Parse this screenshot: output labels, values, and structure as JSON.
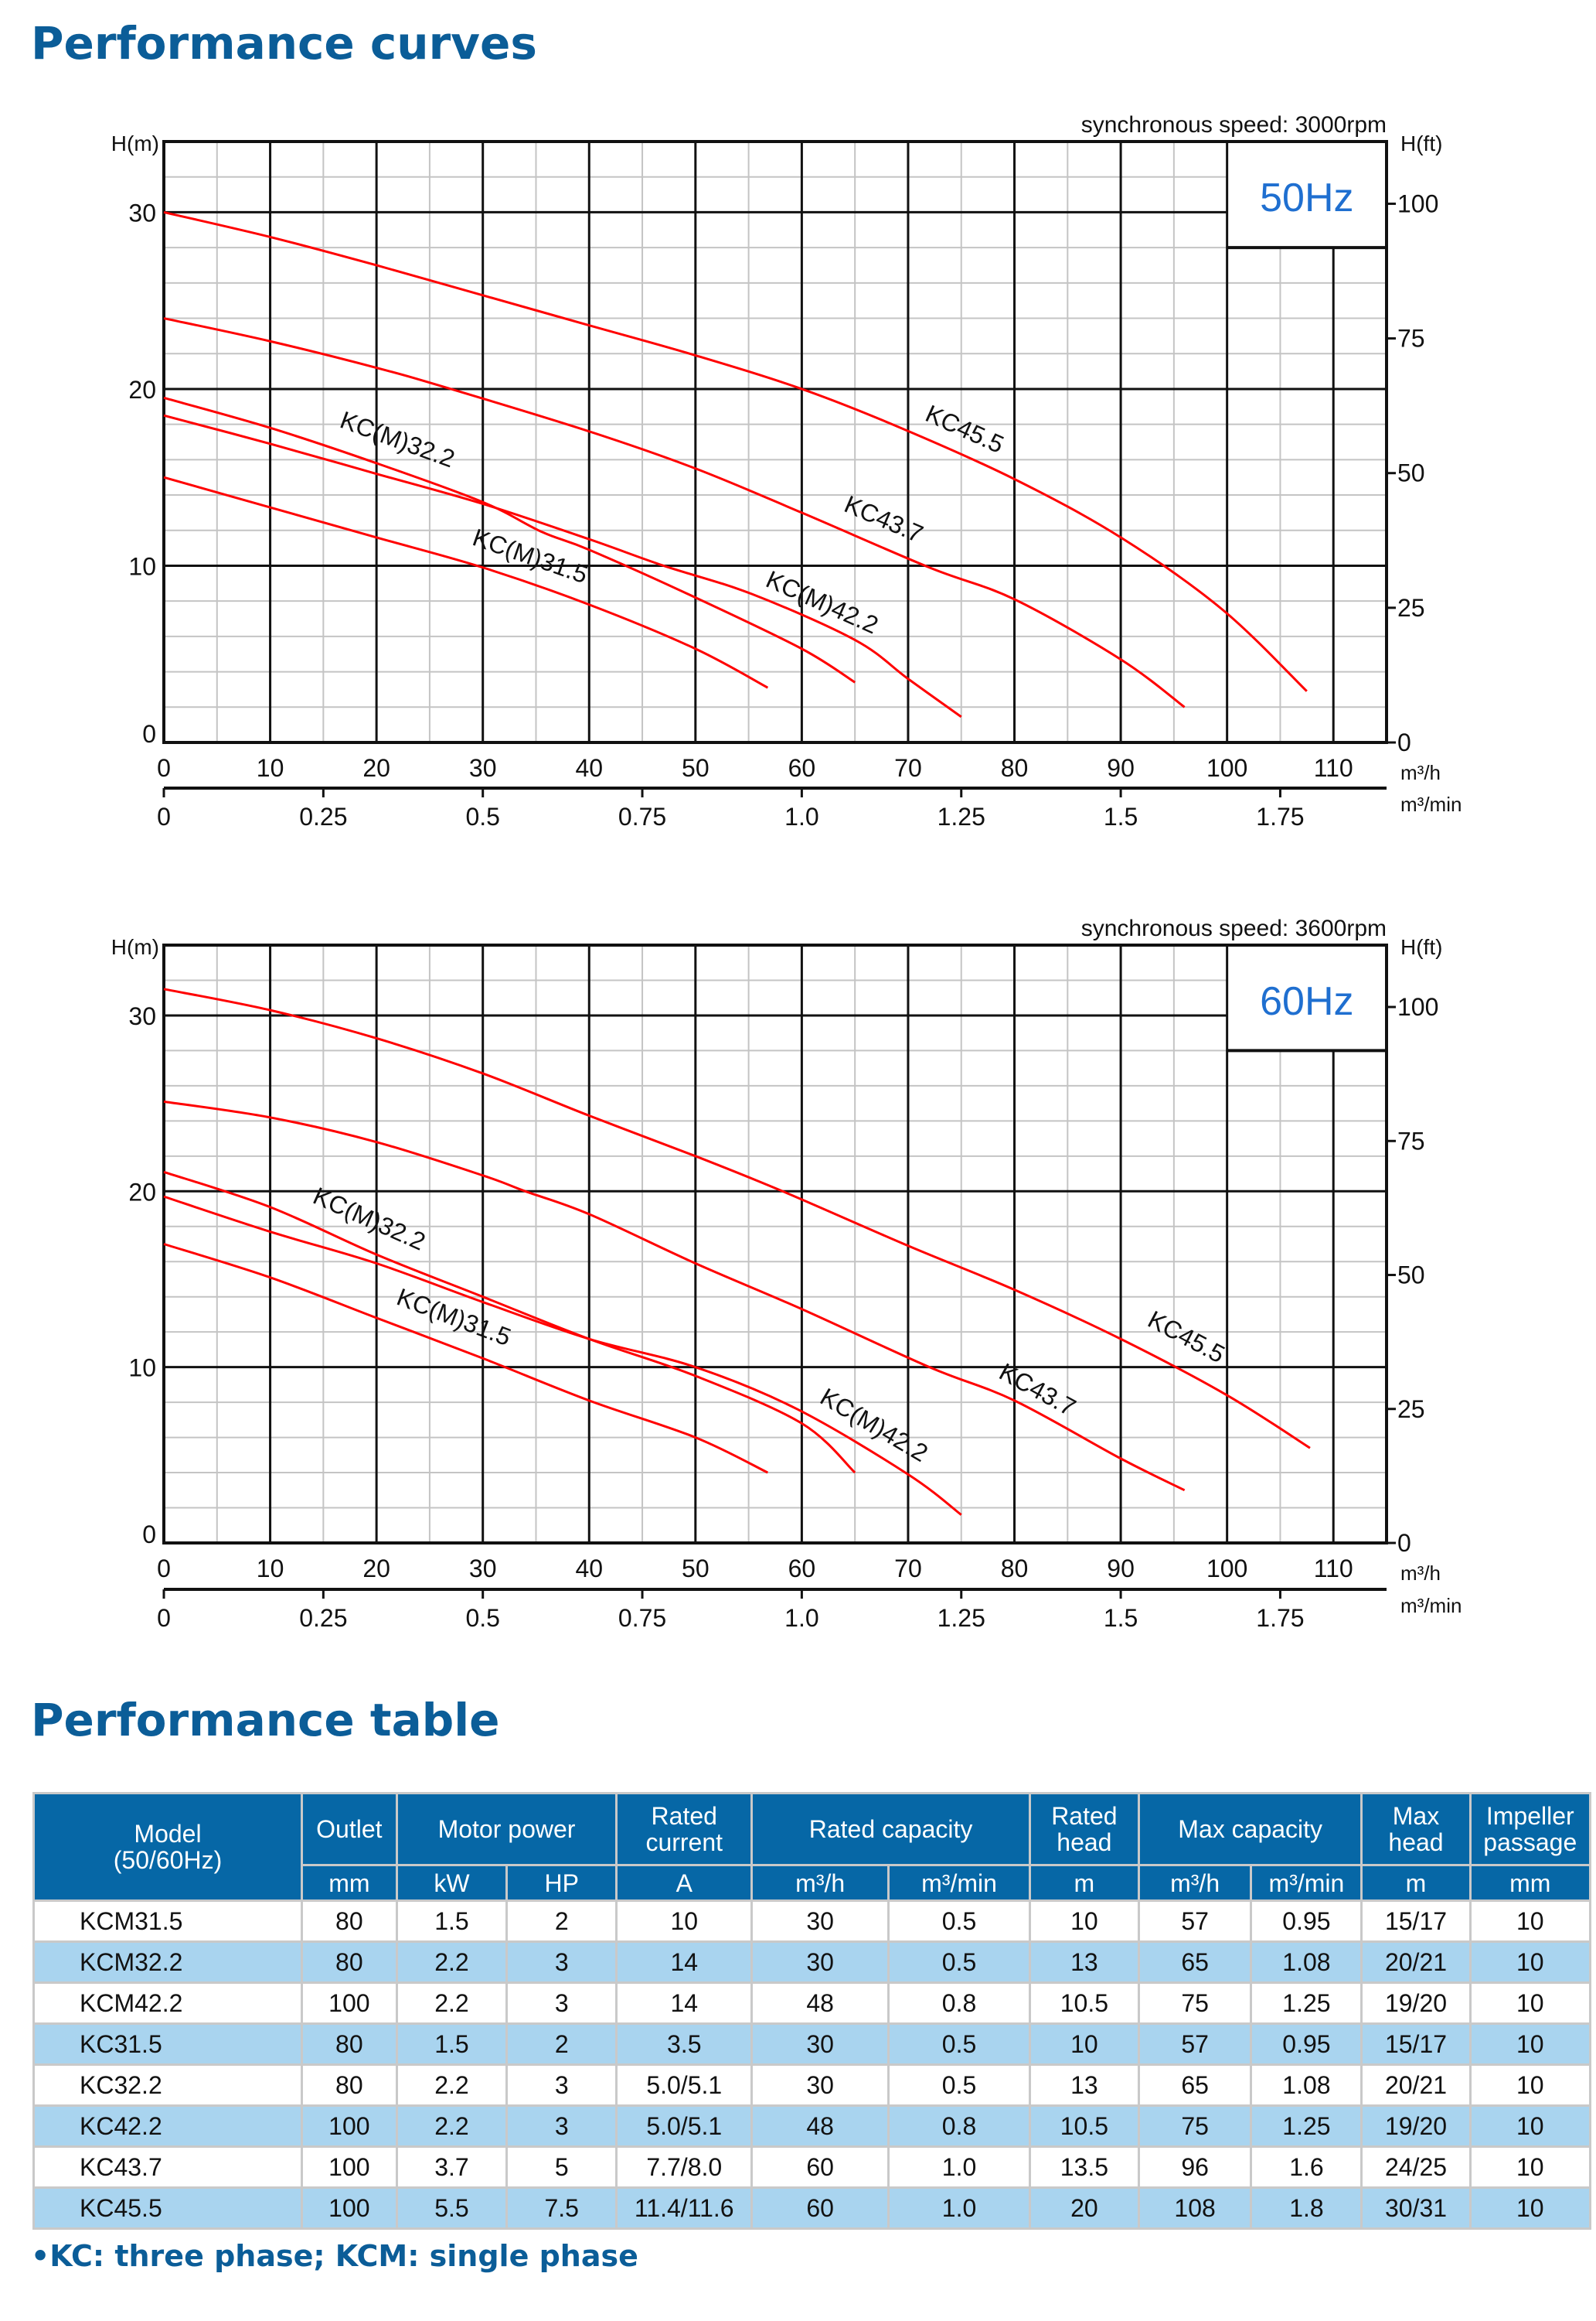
{
  "curves_title": "Performance curves",
  "table_title": "Performance table",
  "footnote": "•KC: three phase; KCM: single phase",
  "colors": {
    "curve": "#ff0000",
    "title": "#0b5d98",
    "badge_text": "#1f6fd0",
    "header_bg": "#0667a6",
    "row_alt": "#a9d4ef"
  },
  "chart_data": [
    {
      "type": "line",
      "badge": "50Hz",
      "speed_note": "synchronous speed: 3000rpm",
      "ylabel": "H(m)",
      "y2label": "H(ft)",
      "xlabel": "m³/h",
      "x2label": "m³/min",
      "xlim": [
        0,
        115
      ],
      "ylim": [
        0,
        34
      ],
      "grid": true,
      "xticks": [
        0,
        10,
        20,
        30,
        40,
        50,
        60,
        70,
        80,
        90,
        100,
        110
      ],
      "yticks": [
        0,
        10,
        20,
        30
      ],
      "y2ticks": [
        0,
        25,
        50,
        75,
        100
      ],
      "x2ticks": [
        "0",
        "0.25",
        "0.5",
        "0.75",
        "1.0",
        "1.25",
        "1.5",
        "1.75"
      ],
      "series": [
        {
          "name": "KC45.5",
          "label_at": [
            75,
            17.3
          ],
          "points": [
            [
              0,
              30
            ],
            [
              10,
              28.6
            ],
            [
              20,
              27.0
            ],
            [
              30,
              25.3
            ],
            [
              40,
              23.6
            ],
            [
              50,
              21.9
            ],
            [
              60,
              20.0
            ],
            [
              69.3,
              17.8
            ],
            [
              80,
              14.9
            ],
            [
              90,
              11.6
            ],
            [
              99.6,
              7.5
            ],
            [
              107.5,
              2.9
            ]
          ]
        },
        {
          "name": "KC43.7",
          "label_at": [
            67.4,
            12.2
          ],
          "points": [
            [
              0,
              24.0
            ],
            [
              10,
              22.7
            ],
            [
              20,
              21.2
            ],
            [
              27,
              20
            ],
            [
              40,
              17.6
            ],
            [
              50,
              15.5
            ],
            [
              60,
              13.0
            ],
            [
              72,
              9.9
            ],
            [
              80,
              8.1
            ],
            [
              90,
              4.7
            ],
            [
              96,
              2.0
            ]
          ]
        },
        {
          "name": "KC(M)42.2",
          "label_at": [
            61.6,
            7.5
          ],
          "points": [
            [
              0,
              18.5
            ],
            [
              10,
              16.9
            ],
            [
              20,
              15.2
            ],
            [
              30,
              13.5
            ],
            [
              40,
              11.5
            ],
            [
              47,
              10.0
            ],
            [
              55.3,
              8.4
            ],
            [
              65,
              5.8
            ],
            [
              70,
              3.6
            ],
            [
              75,
              1.45
            ]
          ]
        },
        {
          "name": "KC(M)32.2",
          "label_at": [
            21.7,
            16.7
          ],
          "points": [
            [
              0,
              19.5
            ],
            [
              10,
              17.8
            ],
            [
              20,
              15.8
            ],
            [
              30,
              13.6
            ],
            [
              35.6,
              11.9
            ],
            [
              40,
              10.9
            ],
            [
              50,
              8.2
            ],
            [
              60,
              5.3
            ],
            [
              65,
              3.4
            ]
          ]
        },
        {
          "name": "KC(M)31.5",
          "label_at": [
            34.2,
            10.1
          ],
          "points": [
            [
              0,
              15.0
            ],
            [
              10,
              13.3
            ],
            [
              20,
              11.6
            ],
            [
              30,
              9.9
            ],
            [
              40,
              7.8
            ],
            [
              50,
              5.3
            ],
            [
              56.8,
              3.1
            ]
          ]
        }
      ]
    },
    {
      "type": "line",
      "badge": "60Hz",
      "speed_note": "synchronous speed: 3600rpm",
      "ylabel": "H(m)",
      "y2label": "H(ft)",
      "xlabel": "m³/h",
      "x2label": "m³/min",
      "xlim": [
        0,
        115
      ],
      "ylim": [
        0,
        34
      ],
      "grid": true,
      "xticks": [
        0,
        10,
        20,
        30,
        40,
        50,
        60,
        70,
        80,
        90,
        100,
        110
      ],
      "yticks": [
        0,
        10,
        20,
        30
      ],
      "y2ticks": [
        0,
        25,
        50,
        75,
        100
      ],
      "x2ticks": [
        "0",
        "0.25",
        "0.5",
        "0.75",
        "1.0",
        "1.25",
        "1.5",
        "1.75"
      ],
      "series": [
        {
          "name": "KC45.5",
          "label_at": [
            95.8,
            11.3
          ],
          "points": [
            [
              0,
              31.5
            ],
            [
              10,
              30.3
            ],
            [
              20,
              28.7
            ],
            [
              30,
              26.7
            ],
            [
              40,
              24.3
            ],
            [
              50,
              22.0
            ],
            [
              58.2,
              20.0
            ],
            [
              70,
              16.9
            ],
            [
              80,
              14.4
            ],
            [
              90,
              11.6
            ],
            [
              100,
              8.4
            ],
            [
              107.8,
              5.4
            ]
          ]
        },
        {
          "name": "KC43.7",
          "label_at": [
            81.8,
            8.3
          ],
          "points": [
            [
              0,
              25.1
            ],
            [
              10,
              24.2
            ],
            [
              20,
              22.8
            ],
            [
              30,
              20.9
            ],
            [
              34,
              20.0
            ],
            [
              40,
              18.7
            ],
            [
              50,
              15.9
            ],
            [
              60,
              13.3
            ],
            [
              72,
              10.0
            ],
            [
              80,
              8.1
            ],
            [
              90,
              4.8
            ],
            [
              96,
              3.0
            ]
          ]
        },
        {
          "name": "KC(M)42.2",
          "label_at": [
            66.4,
            6.3
          ],
          "points": [
            [
              0,
              19.7
            ],
            [
              10,
              17.7
            ],
            [
              20,
              15.9
            ],
            [
              30,
              13.7
            ],
            [
              40,
              11.6
            ],
            [
              50,
              10.0
            ],
            [
              59.6,
              7.6
            ],
            [
              70,
              3.9
            ],
            [
              75,
              1.6
            ]
          ]
        },
        {
          "name": "KC(M)32.2",
          "label_at": [
            19,
            18
          ],
          "points": [
            [
              0,
              21.1
            ],
            [
              10,
              19.1
            ],
            [
              20,
              16.4
            ],
            [
              30,
              14.0
            ],
            [
              40,
              11.6
            ],
            [
              50,
              9.5
            ],
            [
              60,
              6.8
            ],
            [
              65,
              4.0
            ]
          ]
        },
        {
          "name": "KC(M)31.5",
          "label_at": [
            27,
            12.4
          ],
          "points": [
            [
              0,
              17.0
            ],
            [
              10,
              15.1
            ],
            [
              20,
              12.8
            ],
            [
              30,
              10.5
            ],
            [
              40,
              8.1
            ],
            [
              50,
              6.0
            ],
            [
              56.8,
              4.0
            ]
          ]
        }
      ]
    }
  ],
  "table": {
    "header_groups": [
      {
        "label": "Model\n(50/60Hz)",
        "span": 1,
        "rowspan": 2
      },
      {
        "label": "Outlet",
        "span": 1
      },
      {
        "label": "Motor power",
        "span": 2
      },
      {
        "label": "Rated\ncurrent",
        "span": 1
      },
      {
        "label": "Rated capacity",
        "span": 2
      },
      {
        "label": "Rated\nhead",
        "span": 1
      },
      {
        "label": "Max capacity",
        "span": 2
      },
      {
        "label": "Max\nhead",
        "span": 1
      },
      {
        "label": "Impeller\npassage",
        "span": 1
      }
    ],
    "units": [
      "mm",
      "kW",
      "HP",
      "A",
      "m³/h",
      "m³/min",
      "m",
      "m³/h",
      "m³/min",
      "m",
      "mm"
    ],
    "rows": [
      [
        "KCM31.5",
        "80",
        "1.5",
        "2",
        "10",
        "30",
        "0.5",
        "10",
        "57",
        "0.95",
        "15/17",
        "10"
      ],
      [
        "KCM32.2",
        "80",
        "2.2",
        "3",
        "14",
        "30",
        "0.5",
        "13",
        "65",
        "1.08",
        "20/21",
        "10"
      ],
      [
        "KCM42.2",
        "100",
        "2.2",
        "3",
        "14",
        "48",
        "0.8",
        "10.5",
        "75",
        "1.25",
        "19/20",
        "10"
      ],
      [
        "KC31.5",
        "80",
        "1.5",
        "2",
        "3.5",
        "30",
        "0.5",
        "10",
        "57",
        "0.95",
        "15/17",
        "10"
      ],
      [
        "KC32.2",
        "80",
        "2.2",
        "3",
        "5.0/5.1",
        "30",
        "0.5",
        "13",
        "65",
        "1.08",
        "20/21",
        "10"
      ],
      [
        "KC42.2",
        "100",
        "2.2",
        "3",
        "5.0/5.1",
        "48",
        "0.8",
        "10.5",
        "75",
        "1.25",
        "19/20",
        "10"
      ],
      [
        "KC43.7",
        "100",
        "3.7",
        "5",
        "7.7/8.0",
        "60",
        "1.0",
        "13.5",
        "96",
        "1.6",
        "24/25",
        "10"
      ],
      [
        "KC45.5",
        "100",
        "5.5",
        "7.5",
        "11.4/11.6",
        "60",
        "1.0",
        "20",
        "108",
        "1.8",
        "30/31",
        "10"
      ]
    ]
  }
}
